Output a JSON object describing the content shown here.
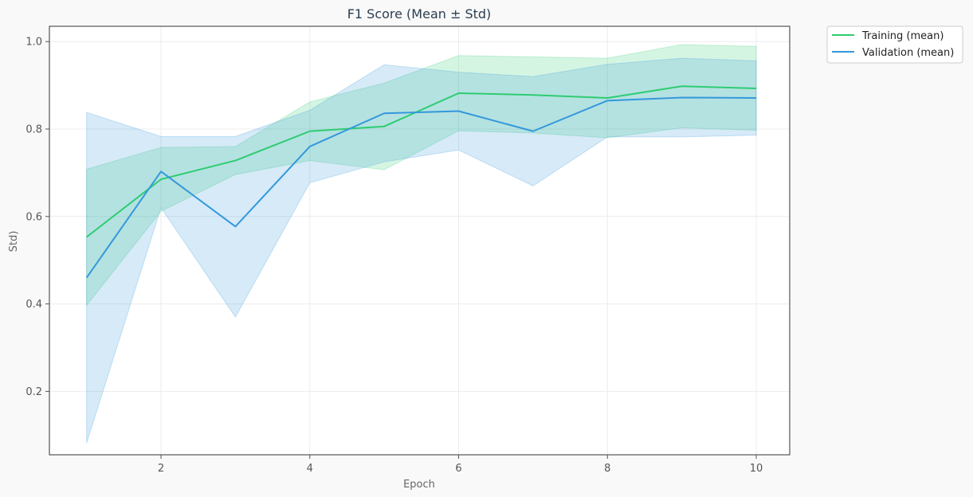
{
  "chart_data": {
    "type": "line",
    "title": "F1 Score (Mean ± Std)",
    "xlabel": "Epoch",
    "ylabel": "Std)",
    "xlim": [
      0.5,
      10.45
    ],
    "ylim": [
      0.055,
      1.035
    ],
    "xticks": [
      2,
      4,
      6,
      8,
      10
    ],
    "yticks": [
      0.2,
      0.4,
      0.6,
      0.8,
      1.0
    ],
    "grid": true,
    "legend_position": "outside-top-right",
    "x": [
      1,
      2,
      3,
      4,
      5,
      6,
      7,
      8,
      9,
      10
    ],
    "series": [
      {
        "name": "Training (mean)",
        "color": "#2ecc71",
        "values": [
          0.553,
          0.685,
          0.728,
          0.795,
          0.806,
          0.882,
          0.878,
          0.871,
          0.898,
          0.893
        ],
        "upper": [
          0.708,
          0.758,
          0.76,
          0.862,
          0.905,
          0.968,
          0.965,
          0.962,
          0.993,
          0.989
        ],
        "lower": [
          0.397,
          0.612,
          0.696,
          0.728,
          0.707,
          0.796,
          0.791,
          0.78,
          0.803,
          0.797
        ]
      },
      {
        "name": "Validation (mean)",
        "color": "#3498db",
        "values": [
          0.46,
          0.703,
          0.577,
          0.76,
          0.836,
          0.841,
          0.795,
          0.865,
          0.872,
          0.871
        ],
        "upper": [
          0.838,
          0.783,
          0.783,
          0.843,
          0.947,
          0.93,
          0.92,
          0.948,
          0.962,
          0.956
        ],
        "lower": [
          0.082,
          0.62,
          0.37,
          0.677,
          0.725,
          0.752,
          0.67,
          0.782,
          0.782,
          0.786
        ]
      }
    ]
  }
}
